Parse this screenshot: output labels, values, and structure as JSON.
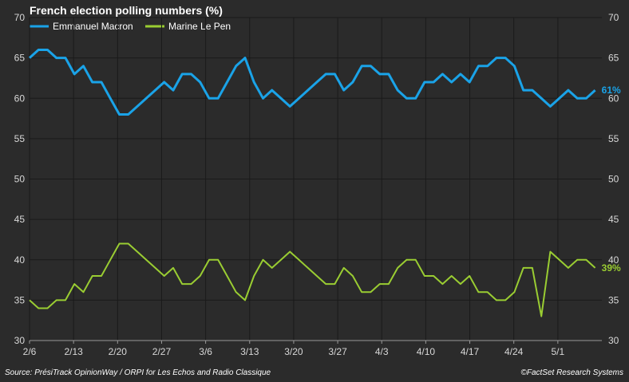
{
  "chart_data": {
    "type": "line",
    "title": "French election polling numbers (%)",
    "source": "Source: PrésiTrack OpinionWay / ORPI for Les Echos and Radio Classique",
    "credit": "©FactSet Research Systems",
    "ylim": [
      30,
      70
    ],
    "y_ticks": [
      "30",
      "35",
      "40",
      "45",
      "50",
      "55",
      "60",
      "65",
      "70"
    ],
    "x_start": "2/6",
    "x_end": "5/8",
    "x_ticks": [
      {
        "label": "2/6",
        "day": 0
      },
      {
        "label": "2/13",
        "day": 7
      },
      {
        "label": "2/20",
        "day": 14
      },
      {
        "label": "2/27",
        "day": 21
      },
      {
        "label": "3/6",
        "day": 28
      },
      {
        "label": "3/13",
        "day": 35
      },
      {
        "label": "3/20",
        "day": 42
      },
      {
        "label": "3/27",
        "day": 49
      },
      {
        "label": "4/3",
        "day": 56
      },
      {
        "label": "4/10",
        "day": 63
      },
      {
        "label": "4/17",
        "day": 70
      },
      {
        "label": "4/24",
        "day": 77
      },
      {
        "label": "5/1",
        "day": 84
      }
    ],
    "axis_max_day": 91,
    "grid": true,
    "legend_position": "top-left",
    "series": [
      {
        "name": "Emmanuel Macron",
        "color": "#1aa3e8",
        "end_label": "61%",
        "values": [
          65,
          66,
          66,
          65,
          65,
          63,
          64,
          62,
          62,
          60,
          58,
          58,
          59,
          60,
          61,
          62,
          61,
          63,
          63,
          62,
          60,
          60,
          62,
          64,
          65,
          62,
          60,
          61,
          60,
          59,
          60,
          61,
          62,
          63,
          63,
          61,
          62,
          64,
          64,
          63,
          63,
          61,
          60,
          60,
          62,
          62,
          63,
          62,
          63,
          62,
          64,
          64,
          65,
          65,
          64,
          61,
          61,
          60,
          59,
          60,
          61,
          60,
          60,
          61
        ]
      },
      {
        "name": "Marine Le Pen",
        "color": "#9acd32",
        "end_label": "39%",
        "values": [
          35,
          34,
          34,
          35,
          35,
          37,
          36,
          38,
          38,
          40,
          42,
          42,
          41,
          40,
          39,
          38,
          39,
          37,
          37,
          38,
          40,
          40,
          38,
          36,
          35,
          38,
          40,
          39,
          40,
          41,
          40,
          39,
          38,
          37,
          37,
          39,
          38,
          36,
          36,
          37,
          37,
          39,
          40,
          40,
          38,
          38,
          37,
          38,
          37,
          38,
          36,
          36,
          35,
          35,
          36,
          39,
          39,
          33,
          41,
          40,
          39,
          40,
          40,
          39
        ]
      }
    ]
  }
}
